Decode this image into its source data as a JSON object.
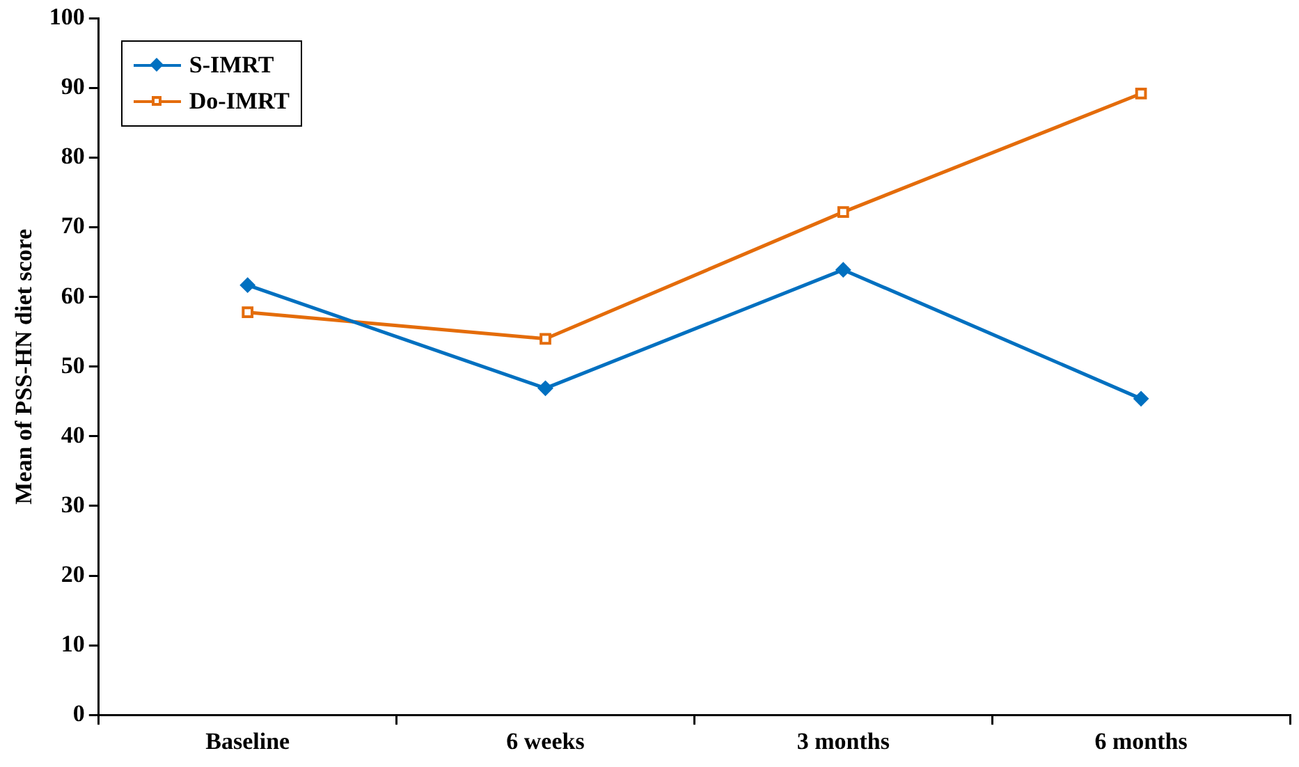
{
  "chart_data": {
    "type": "line",
    "ylabel": "Mean of PSS-HN diet score",
    "categories": [
      "Baseline",
      "6 weeks",
      "3 months",
      "6 months"
    ],
    "series": [
      {
        "name": "S-IMRT",
        "color": "#0070c0",
        "marker": "diamond",
        "values": [
          61.7,
          46.9,
          63.9,
          45.4
        ]
      },
      {
        "name": "Do-IMRT",
        "color": "#e46c0a",
        "marker": "square",
        "values": [
          57.8,
          54.0,
          72.2,
          89.2
        ]
      }
    ],
    "ylim": [
      0,
      100
    ],
    "yticks": [
      0,
      10,
      20,
      30,
      40,
      50,
      60,
      70,
      80,
      90,
      100
    ],
    "grid": false,
    "legend": "top left",
    "line_style": "solid"
  }
}
